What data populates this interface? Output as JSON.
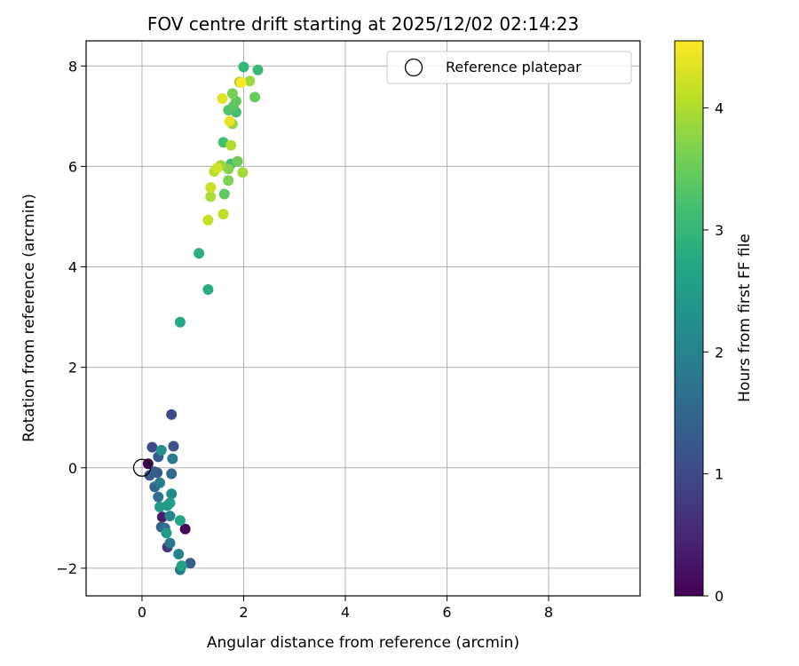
{
  "chart_data": {
    "type": "scatter",
    "title": "FOV centre drift starting at 2025/12/02 02:14:23",
    "xlabel": "Angular distance from reference (arcmin)",
    "ylabel": "Rotation from reference (arcmin)",
    "xlim": [
      -1.1,
      9.8
    ],
    "ylim": [
      -2.55,
      8.5
    ],
    "xticks": [
      0,
      2,
      4,
      6,
      8
    ],
    "yticks": [
      -2,
      0,
      2,
      4,
      6,
      8
    ],
    "grid": true,
    "colormap": "viridis",
    "colorbar": {
      "label": "Hours from first FF file",
      "range": [
        0,
        4.55
      ],
      "ticks": [
        0,
        1,
        2,
        3,
        4
      ]
    },
    "legend": {
      "placement": "top-right",
      "entries": [
        "Reference platepar"
      ]
    },
    "reference_point": {
      "x": 0,
      "y": 0
    },
    "points": [
      {
        "x": 0.12,
        "y": 0.08,
        "c": 0.0
      },
      {
        "x": 0.85,
        "y": -1.22,
        "c": 0.05
      },
      {
        "x": 0.4,
        "y": -0.98,
        "c": 0.35
      },
      {
        "x": 0.5,
        "y": -1.58,
        "c": 0.7
      },
      {
        "x": 0.2,
        "y": 0.41,
        "c": 1.0
      },
      {
        "x": 0.58,
        "y": 1.06,
        "c": 1.05
      },
      {
        "x": 0.62,
        "y": 0.43,
        "c": 1.15
      },
      {
        "x": 0.3,
        "y": -0.1,
        "c": 1.2
      },
      {
        "x": 0.15,
        "y": -0.15,
        "c": 1.25
      },
      {
        "x": 0.32,
        "y": 0.22,
        "c": 1.3
      },
      {
        "x": 0.95,
        "y": -1.9,
        "c": 1.3
      },
      {
        "x": 0.25,
        "y": -0.08,
        "c": 1.35
      },
      {
        "x": 0.38,
        "y": -1.18,
        "c": 1.4
      },
      {
        "x": 0.25,
        "y": -0.38,
        "c": 1.5
      },
      {
        "x": 0.58,
        "y": -0.12,
        "c": 1.55
      },
      {
        "x": 0.45,
        "y": -1.2,
        "c": 1.6
      },
      {
        "x": 0.32,
        "y": -0.58,
        "c": 1.7
      },
      {
        "x": 0.55,
        "y": -1.5,
        "c": 1.8
      },
      {
        "x": 0.35,
        "y": -0.3,
        "c": 1.85
      },
      {
        "x": 0.6,
        "y": 0.18,
        "c": 1.9
      },
      {
        "x": 0.75,
        "y": -2.03,
        "c": 1.95
      },
      {
        "x": 0.72,
        "y": -1.72,
        "c": 2.0
      },
      {
        "x": 0.55,
        "y": -0.96,
        "c": 2.1
      },
      {
        "x": 0.58,
        "y": -0.52,
        "c": 2.2
      },
      {
        "x": 0.38,
        "y": 0.35,
        "c": 2.3
      },
      {
        "x": 0.5,
        "y": -0.75,
        "c": 2.4
      },
      {
        "x": 0.48,
        "y": -1.3,
        "c": 2.45
      },
      {
        "x": 0.35,
        "y": -0.78,
        "c": 2.5
      },
      {
        "x": 0.55,
        "y": -0.7,
        "c": 2.55
      },
      {
        "x": 0.78,
        "y": -1.95,
        "c": 2.6
      },
      {
        "x": 0.75,
        "y": -1.05,
        "c": 2.7
      },
      {
        "x": 0.75,
        "y": 2.9,
        "c": 2.75
      },
      {
        "x": 1.3,
        "y": 3.55,
        "c": 2.8
      },
      {
        "x": 1.12,
        "y": 4.27,
        "c": 2.85
      },
      {
        "x": 2.0,
        "y": 7.98,
        "c": 3.0
      },
      {
        "x": 2.28,
        "y": 7.92,
        "c": 3.05
      },
      {
        "x": 1.75,
        "y": 6.05,
        "c": 3.1
      },
      {
        "x": 1.85,
        "y": 7.08,
        "c": 3.15
      },
      {
        "x": 1.6,
        "y": 6.48,
        "c": 3.2
      },
      {
        "x": 1.7,
        "y": 7.12,
        "c": 3.3
      },
      {
        "x": 1.8,
        "y": 7.2,
        "c": 3.35
      },
      {
        "x": 1.62,
        "y": 5.45,
        "c": 3.4
      },
      {
        "x": 1.85,
        "y": 7.3,
        "c": 3.45
      },
      {
        "x": 2.22,
        "y": 7.38,
        "c": 3.5
      },
      {
        "x": 1.88,
        "y": 6.1,
        "c": 3.55
      },
      {
        "x": 1.78,
        "y": 7.45,
        "c": 3.6
      },
      {
        "x": 1.7,
        "y": 5.72,
        "c": 3.65
      },
      {
        "x": 1.7,
        "y": 5.95,
        "c": 3.7
      },
      {
        "x": 1.92,
        "y": 7.68,
        "c": 3.75
      },
      {
        "x": 1.78,
        "y": 6.85,
        "c": 3.8
      },
      {
        "x": 1.55,
        "y": 6.02,
        "c": 3.85
      },
      {
        "x": 2.12,
        "y": 7.7,
        "c": 3.88
      },
      {
        "x": 1.98,
        "y": 5.88,
        "c": 3.9
      },
      {
        "x": 1.35,
        "y": 5.4,
        "c": 3.95
      },
      {
        "x": 1.75,
        "y": 6.42,
        "c": 4.0
      },
      {
        "x": 1.42,
        "y": 5.9,
        "c": 4.05
      },
      {
        "x": 1.6,
        "y": 5.05,
        "c": 4.1
      },
      {
        "x": 1.3,
        "y": 4.93,
        "c": 4.15
      },
      {
        "x": 1.35,
        "y": 5.58,
        "c": 4.2
      },
      {
        "x": 1.48,
        "y": 5.97,
        "c": 4.25
      },
      {
        "x": 1.58,
        "y": 7.35,
        "c": 4.35
      },
      {
        "x": 1.72,
        "y": 6.9,
        "c": 4.4
      },
      {
        "x": 1.95,
        "y": 7.67,
        "c": 4.5
      }
    ]
  }
}
